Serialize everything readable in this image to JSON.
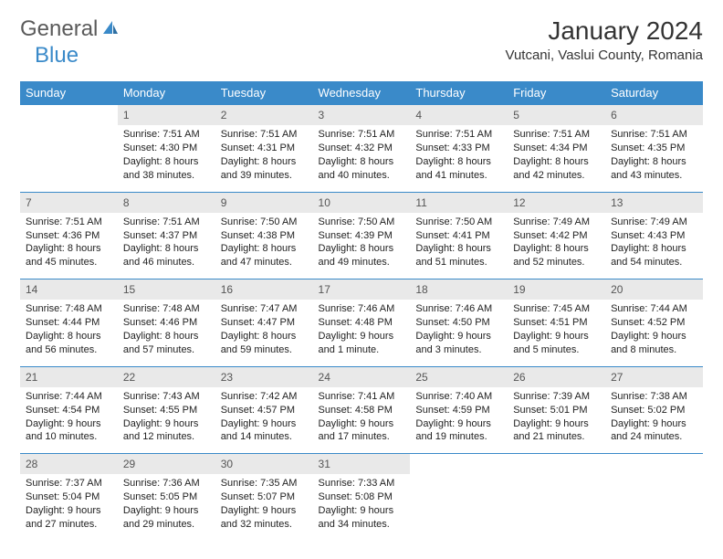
{
  "brand": {
    "part1": "General",
    "part2": "Blue"
  },
  "title": "January 2024",
  "location": "Vutcani, Vaslui County, Romania",
  "colors": {
    "header_bg": "#3a8ac9",
    "header_fg": "#ffffff",
    "daynum_bg": "#e9e9e9",
    "rule": "#3a8ac9",
    "text": "#222222",
    "logo_gray": "#5a5a5a",
    "logo_blue": "#3a8ac9"
  },
  "weekdays": [
    "Sunday",
    "Monday",
    "Tuesday",
    "Wednesday",
    "Thursday",
    "Friday",
    "Saturday"
  ],
  "weeks": [
    [
      {
        "n": "",
        "sr": "",
        "ss": "",
        "d1": "",
        "d2": ""
      },
      {
        "n": "1",
        "sr": "Sunrise: 7:51 AM",
        "ss": "Sunset: 4:30 PM",
        "d1": "Daylight: 8 hours",
        "d2": "and 38 minutes."
      },
      {
        "n": "2",
        "sr": "Sunrise: 7:51 AM",
        "ss": "Sunset: 4:31 PM",
        "d1": "Daylight: 8 hours",
        "d2": "and 39 minutes."
      },
      {
        "n": "3",
        "sr": "Sunrise: 7:51 AM",
        "ss": "Sunset: 4:32 PM",
        "d1": "Daylight: 8 hours",
        "d2": "and 40 minutes."
      },
      {
        "n": "4",
        "sr": "Sunrise: 7:51 AM",
        "ss": "Sunset: 4:33 PM",
        "d1": "Daylight: 8 hours",
        "d2": "and 41 minutes."
      },
      {
        "n": "5",
        "sr": "Sunrise: 7:51 AM",
        "ss": "Sunset: 4:34 PM",
        "d1": "Daylight: 8 hours",
        "d2": "and 42 minutes."
      },
      {
        "n": "6",
        "sr": "Sunrise: 7:51 AM",
        "ss": "Sunset: 4:35 PM",
        "d1": "Daylight: 8 hours",
        "d2": "and 43 minutes."
      }
    ],
    [
      {
        "n": "7",
        "sr": "Sunrise: 7:51 AM",
        "ss": "Sunset: 4:36 PM",
        "d1": "Daylight: 8 hours",
        "d2": "and 45 minutes."
      },
      {
        "n": "8",
        "sr": "Sunrise: 7:51 AM",
        "ss": "Sunset: 4:37 PM",
        "d1": "Daylight: 8 hours",
        "d2": "and 46 minutes."
      },
      {
        "n": "9",
        "sr": "Sunrise: 7:50 AM",
        "ss": "Sunset: 4:38 PM",
        "d1": "Daylight: 8 hours",
        "d2": "and 47 minutes."
      },
      {
        "n": "10",
        "sr": "Sunrise: 7:50 AM",
        "ss": "Sunset: 4:39 PM",
        "d1": "Daylight: 8 hours",
        "d2": "and 49 minutes."
      },
      {
        "n": "11",
        "sr": "Sunrise: 7:50 AM",
        "ss": "Sunset: 4:41 PM",
        "d1": "Daylight: 8 hours",
        "d2": "and 51 minutes."
      },
      {
        "n": "12",
        "sr": "Sunrise: 7:49 AM",
        "ss": "Sunset: 4:42 PM",
        "d1": "Daylight: 8 hours",
        "d2": "and 52 minutes."
      },
      {
        "n": "13",
        "sr": "Sunrise: 7:49 AM",
        "ss": "Sunset: 4:43 PM",
        "d1": "Daylight: 8 hours",
        "d2": "and 54 minutes."
      }
    ],
    [
      {
        "n": "14",
        "sr": "Sunrise: 7:48 AM",
        "ss": "Sunset: 4:44 PM",
        "d1": "Daylight: 8 hours",
        "d2": "and 56 minutes."
      },
      {
        "n": "15",
        "sr": "Sunrise: 7:48 AM",
        "ss": "Sunset: 4:46 PM",
        "d1": "Daylight: 8 hours",
        "d2": "and 57 minutes."
      },
      {
        "n": "16",
        "sr": "Sunrise: 7:47 AM",
        "ss": "Sunset: 4:47 PM",
        "d1": "Daylight: 8 hours",
        "d2": "and 59 minutes."
      },
      {
        "n": "17",
        "sr": "Sunrise: 7:46 AM",
        "ss": "Sunset: 4:48 PM",
        "d1": "Daylight: 9 hours",
        "d2": "and 1 minute."
      },
      {
        "n": "18",
        "sr": "Sunrise: 7:46 AM",
        "ss": "Sunset: 4:50 PM",
        "d1": "Daylight: 9 hours",
        "d2": "and 3 minutes."
      },
      {
        "n": "19",
        "sr": "Sunrise: 7:45 AM",
        "ss": "Sunset: 4:51 PM",
        "d1": "Daylight: 9 hours",
        "d2": "and 5 minutes."
      },
      {
        "n": "20",
        "sr": "Sunrise: 7:44 AM",
        "ss": "Sunset: 4:52 PM",
        "d1": "Daylight: 9 hours",
        "d2": "and 8 minutes."
      }
    ],
    [
      {
        "n": "21",
        "sr": "Sunrise: 7:44 AM",
        "ss": "Sunset: 4:54 PM",
        "d1": "Daylight: 9 hours",
        "d2": "and 10 minutes."
      },
      {
        "n": "22",
        "sr": "Sunrise: 7:43 AM",
        "ss": "Sunset: 4:55 PM",
        "d1": "Daylight: 9 hours",
        "d2": "and 12 minutes."
      },
      {
        "n": "23",
        "sr": "Sunrise: 7:42 AM",
        "ss": "Sunset: 4:57 PM",
        "d1": "Daylight: 9 hours",
        "d2": "and 14 minutes."
      },
      {
        "n": "24",
        "sr": "Sunrise: 7:41 AM",
        "ss": "Sunset: 4:58 PM",
        "d1": "Daylight: 9 hours",
        "d2": "and 17 minutes."
      },
      {
        "n": "25",
        "sr": "Sunrise: 7:40 AM",
        "ss": "Sunset: 4:59 PM",
        "d1": "Daylight: 9 hours",
        "d2": "and 19 minutes."
      },
      {
        "n": "26",
        "sr": "Sunrise: 7:39 AM",
        "ss": "Sunset: 5:01 PM",
        "d1": "Daylight: 9 hours",
        "d2": "and 21 minutes."
      },
      {
        "n": "27",
        "sr": "Sunrise: 7:38 AM",
        "ss": "Sunset: 5:02 PM",
        "d1": "Daylight: 9 hours",
        "d2": "and 24 minutes."
      }
    ],
    [
      {
        "n": "28",
        "sr": "Sunrise: 7:37 AM",
        "ss": "Sunset: 5:04 PM",
        "d1": "Daylight: 9 hours",
        "d2": "and 27 minutes."
      },
      {
        "n": "29",
        "sr": "Sunrise: 7:36 AM",
        "ss": "Sunset: 5:05 PM",
        "d1": "Daylight: 9 hours",
        "d2": "and 29 minutes."
      },
      {
        "n": "30",
        "sr": "Sunrise: 7:35 AM",
        "ss": "Sunset: 5:07 PM",
        "d1": "Daylight: 9 hours",
        "d2": "and 32 minutes."
      },
      {
        "n": "31",
        "sr": "Sunrise: 7:33 AM",
        "ss": "Sunset: 5:08 PM",
        "d1": "Daylight: 9 hours",
        "d2": "and 34 minutes."
      },
      {
        "n": "",
        "sr": "",
        "ss": "",
        "d1": "",
        "d2": ""
      },
      {
        "n": "",
        "sr": "",
        "ss": "",
        "d1": "",
        "d2": ""
      },
      {
        "n": "",
        "sr": "",
        "ss": "",
        "d1": "",
        "d2": ""
      }
    ]
  ]
}
